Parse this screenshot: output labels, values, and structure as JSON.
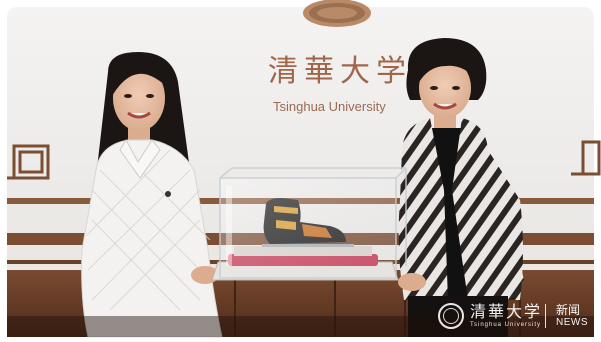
{
  "wall_sign": {
    "chinese": "清華大学",
    "english": "Tsinghua University"
  },
  "watermark": {
    "logo_chinese": "清華大学",
    "logo_english": "Tsinghua University",
    "news_chinese": "新闻",
    "news_english": "NEWS"
  },
  "icons": {
    "seal": "university-seal-icon"
  }
}
